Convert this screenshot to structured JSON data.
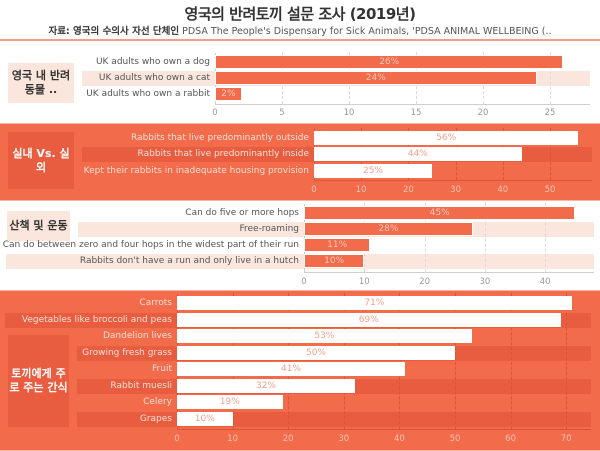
{
  "header": {
    "title": "영국의 반려토끼 설문 조사 (2019년)",
    "subtitle_label": "자료: 영국의 수의사 자선 단체인",
    "subtitle_text": " PDSA The People's Dispensary for Sick Animals, 'PDSA ANIMAL WELLBEING (.."
  },
  "colors": {
    "accent": "#f26b4a",
    "accent_dark": "#e85d40",
    "light_band": "#fae6dc",
    "white": "#ffffff"
  },
  "sections": [
    {
      "category": "영국 내 반려동물 ..",
      "rows": [
        {
          "label": "UK adults who own a dog",
          "value": 26,
          "display": "26%"
        },
        {
          "label": "UK adults who own a cat",
          "value": 24,
          "display": "24%"
        },
        {
          "label": "UK adults who own a rabbit",
          "value": 2,
          "display": "2%"
        }
      ],
      "ticks": [
        "0",
        "5",
        "10",
        "15",
        "20",
        "25"
      ]
    },
    {
      "category": "실내 Vs. 실외",
      "rows": [
        {
          "label": "Rabbits that live predominantly outside",
          "value": 56,
          "display": "56%"
        },
        {
          "label": "Rabbits that live predominantly inside",
          "value": 44,
          "display": "44%"
        },
        {
          "label": "Kept their rabbits in inadequate housing provision",
          "value": 25,
          "display": "25%"
        }
      ],
      "ticks": [
        "0",
        "10",
        "20",
        "30",
        "40",
        "50"
      ]
    },
    {
      "category": "산책 및 운동",
      "rows": [
        {
          "label": "Can do five or more hops",
          "value": 45,
          "display": "45%"
        },
        {
          "label": "Free-roaming",
          "value": 28,
          "display": "28%"
        },
        {
          "label": "Can do between zero and four hops in the widest part of their run",
          "value": 11,
          "display": "11%"
        },
        {
          "label": "Rabbits don't have a run and only live in a hutch",
          "value": 10,
          "display": "10%"
        }
      ],
      "ticks": [
        "0",
        "10",
        "20",
        "30",
        "40"
      ]
    },
    {
      "category": "토끼에게 주로 주는 간식",
      "rows": [
        {
          "label": "Carrots",
          "value": 71,
          "display": "71%"
        },
        {
          "label": "Vegetables like broccoli and peas",
          "value": 69,
          "display": "69%"
        },
        {
          "label": "Dandelion lives",
          "value": 53,
          "display": "53%"
        },
        {
          "label": "Growing fresh grass",
          "value": 50,
          "display": "50%"
        },
        {
          "label": "Fruit",
          "value": 41,
          "display": "41%"
        },
        {
          "label": "Rabbit muesli",
          "value": 32,
          "display": "32%"
        },
        {
          "label": "Celery",
          "value": 19,
          "display": "19%"
        },
        {
          "label": "Grapes",
          "value": 10,
          "display": "10%"
        }
      ],
      "ticks": [
        "0",
        "10",
        "20",
        "30",
        "40",
        "50",
        "60",
        "70"
      ]
    }
  ],
  "chart_data": [
    {
      "type": "bar",
      "orientation": "horizontal",
      "title": "영국 내 반려동물 ..",
      "categories": [
        "UK adults who own a dog",
        "UK adults who own a cat",
        "UK adults who own a rabbit"
      ],
      "values": [
        26,
        24,
        2
      ],
      "xlabel": "",
      "ylabel": "",
      "xlim": [
        0,
        28
      ],
      "xticks": [
        0,
        5,
        10,
        15,
        20,
        25
      ],
      "grid": true,
      "unit": "%"
    },
    {
      "type": "bar",
      "orientation": "horizontal",
      "title": "실내 Vs. 실외",
      "categories": [
        "Rabbits that live predominantly outside",
        "Rabbits that live predominantly inside",
        "Kept their rabbits in inadequate housing provision"
      ],
      "values": [
        56,
        44,
        25
      ],
      "xlabel": "",
      "ylabel": "",
      "xlim": [
        0,
        59
      ],
      "xticks": [
        0,
        10,
        20,
        30,
        40,
        50
      ],
      "grid": true,
      "unit": "%"
    },
    {
      "type": "bar",
      "orientation": "horizontal",
      "title": "산책 및 운동",
      "categories": [
        "Can do five or more hops",
        "Free-roaming",
        "Can do between zero and four hops in the widest part of their run",
        "Rabbits don't have a run and only live in a hutch"
      ],
      "values": [
        45,
        28,
        11,
        10
      ],
      "xlabel": "",
      "ylabel": "",
      "xlim": [
        0,
        48
      ],
      "xticks": [
        0,
        10,
        20,
        30,
        40
      ],
      "grid": true,
      "unit": "%"
    },
    {
      "type": "bar",
      "orientation": "horizontal",
      "title": "토끼에게 주로 주는 간식",
      "categories": [
        "Carrots",
        "Vegetables like broccoli and peas",
        "Dandelion lives",
        "Growing fresh grass",
        "Fruit",
        "Rabbit muesli",
        "Celery",
        "Grapes"
      ],
      "values": [
        71,
        69,
        53,
        50,
        41,
        32,
        19,
        10
      ],
      "xlabel": "",
      "ylabel": "",
      "xlim": [
        0,
        75
      ],
      "xticks": [
        0,
        10,
        20,
        30,
        40,
        50,
        60,
        70
      ],
      "grid": true,
      "unit": "%"
    }
  ]
}
